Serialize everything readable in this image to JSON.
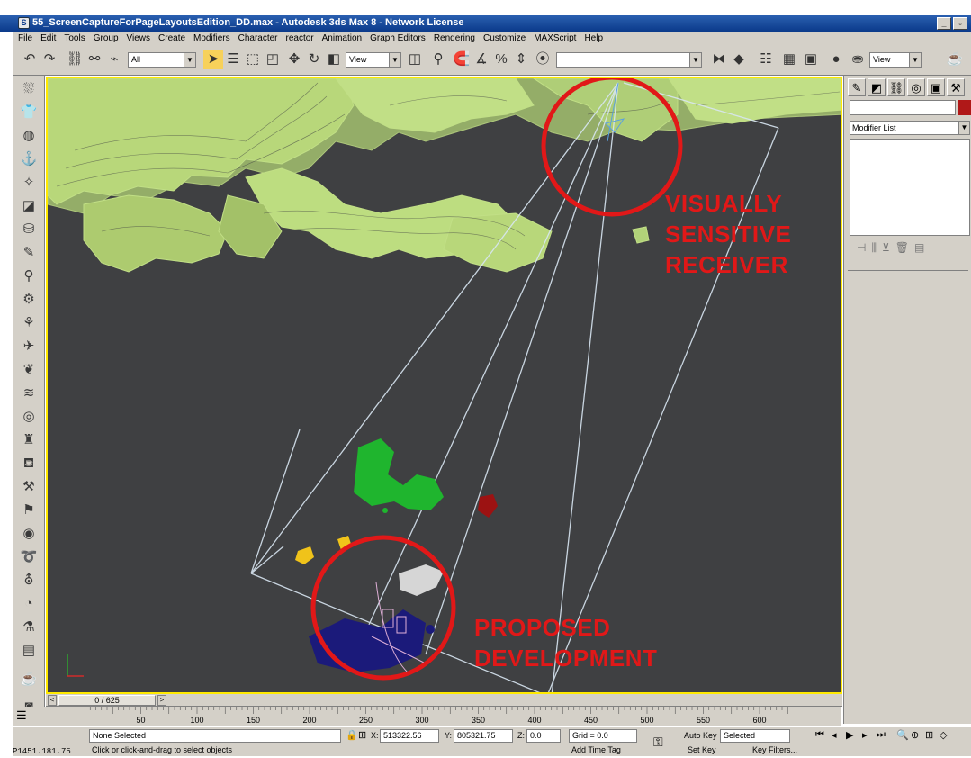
{
  "window": {
    "title": "55_ScreenCaptureForPageLayoutsEdition_DD.max - Autodesk 3ds Max 8 - Network License"
  },
  "menu": [
    "File",
    "Edit",
    "Tools",
    "Group",
    "Views",
    "Create",
    "Modifiers",
    "Character",
    "reactor",
    "Animation",
    "Graph Editors",
    "Rendering",
    "Customize",
    "MAXScript",
    "Help"
  ],
  "toolbar": {
    "selection_filter": "All",
    "ref_coord": "View",
    "named_sel": "",
    "render_view": "View"
  },
  "viewport": {
    "annotations": {
      "receiver": [
        "Visually",
        "Sensitive",
        "Receiver"
      ],
      "development": [
        "Proposed",
        "Development"
      ]
    },
    "colors": {
      "background": "#3f4042",
      "terrain": "#c9e88a",
      "highlight_circle": "#e11818",
      "border": "#ffe900"
    }
  },
  "command_panel": {
    "modifier_list": "Modifier List"
  },
  "timeline": {
    "frame_display": "0 / 625",
    "ticks": [
      "50",
      "100",
      "150",
      "200",
      "250",
      "300",
      "350",
      "400",
      "450",
      "500",
      "550",
      "600"
    ]
  },
  "status": {
    "selection": "None Selected",
    "x_label": "X:",
    "x_value": "513322.56",
    "y_label": "Y:",
    "y_value": "805321.75",
    "z_label": "Z:",
    "z_value": "0.0",
    "grid": "Grid = 0.0",
    "auto_key": "Auto Key",
    "key_mode": "Selected",
    "set_key": "Set Key",
    "key_filters": "Key Filters...",
    "prompt": "Click or click-and-drag to select objects",
    "add_time_tag": "Add Time Tag",
    "corner_coords": "P1451.181.75"
  }
}
